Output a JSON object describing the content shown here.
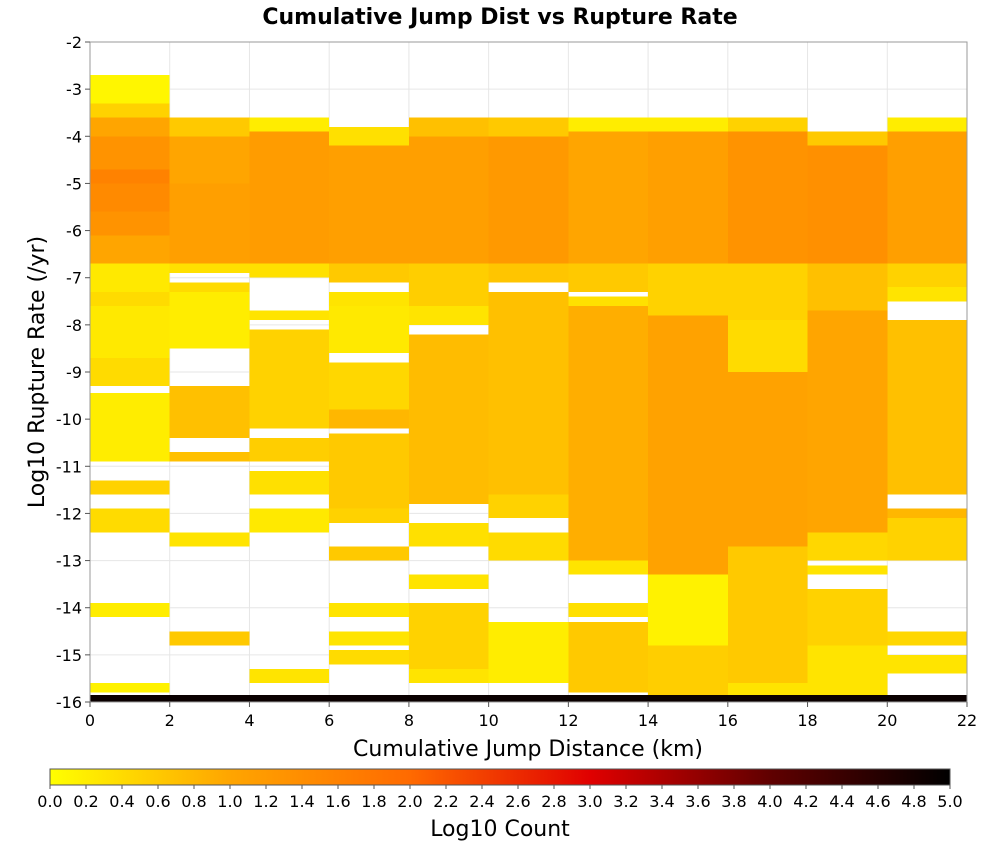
{
  "chart_data": {
    "type": "heatmap",
    "title": "Cumulative Jump Dist vs Rupture Rate",
    "xlabel": "Cumulative Jump Distance (km)",
    "ylabel": "Log10 Rupture Rate (/yr)",
    "xlim": [
      0,
      22
    ],
    "ylim": [
      -16,
      -2
    ],
    "x_bin_width": 2,
    "y_bin_width": 0.1,
    "x_ticks": [
      "0",
      "2",
      "4",
      "6",
      "8",
      "10",
      "12",
      "14",
      "16",
      "18",
      "20",
      "22"
    ],
    "y_ticks": [
      "-2",
      "-3",
      "-4",
      "-5",
      "-6",
      "-7",
      "-8",
      "-9",
      "-10",
      "-11",
      "-12",
      "-13",
      "-14",
      "-15",
      "-16"
    ],
    "grid": true,
    "colorbar": {
      "label": "Log10 Count",
      "min": 0.0,
      "max": 5.0,
      "ticks": [
        "0.0",
        "0.2",
        "0.4",
        "0.6",
        "0.8",
        "1.0",
        "1.2",
        "1.4",
        "1.6",
        "1.8",
        "2.0",
        "2.2",
        "2.4",
        "2.6",
        "2.8",
        "3.0",
        "3.2",
        "3.4",
        "3.6",
        "3.8",
        "4.0",
        "4.2",
        "4.4",
        "4.6",
        "4.8",
        "5.0"
      ],
      "colors": [
        "#ffff00",
        "#ffa500",
        "#ff6a00",
        "#e00000",
        "#600000",
        "#000000"
      ]
    },
    "columns": [
      {
        "x": [
          0,
          2
        ],
        "cells": [
          [
            -3.3,
            -2.7,
            0.1
          ],
          [
            -3.6,
            -3.3,
            0.5
          ],
          [
            -4.0,
            -3.6,
            1.0
          ],
          [
            -4.7,
            -4.0,
            1.3
          ],
          [
            -5.0,
            -4.7,
            1.6
          ],
          [
            -5.6,
            -5.0,
            1.45
          ],
          [
            -6.1,
            -5.6,
            1.3
          ],
          [
            -6.7,
            -6.1,
            1.0
          ],
          [
            -7.3,
            -6.7,
            0.25
          ],
          [
            -7.6,
            -7.3,
            0.4
          ],
          [
            -8.7,
            -7.6,
            0.25
          ],
          [
            -9.3,
            -8.7,
            0.4
          ],
          [
            -9.6,
            -9.45,
            0.2
          ],
          [
            -10.9,
            -9.6,
            0.2
          ],
          [
            -11.6,
            -11.3,
            0.5
          ],
          [
            -12.4,
            -11.9,
            0.4
          ],
          [
            -14.2,
            -13.9,
            0.2
          ],
          [
            -15.8,
            -15.6,
            0.15
          ],
          [
            -16.0,
            -15.85,
            4.9
          ]
        ]
      },
      {
        "x": [
          2,
          4
        ],
        "cells": [
          [
            -4.0,
            -3.6,
            0.6
          ],
          [
            -5.0,
            -4.0,
            1.0
          ],
          [
            -6.7,
            -5.0,
            1.1
          ],
          [
            -6.9,
            -6.7,
            0.35
          ],
          [
            -7.3,
            -7.1,
            0.4
          ],
          [
            -8.5,
            -7.3,
            0.2
          ],
          [
            -10.4,
            -9.3,
            0.7
          ],
          [
            -10.9,
            -10.7,
            0.7
          ],
          [
            -12.7,
            -12.4,
            0.3
          ],
          [
            -14.8,
            -14.5,
            0.6
          ],
          [
            -16.0,
            -15.85,
            4.9
          ]
        ]
      },
      {
        "x": [
          4,
          6
        ],
        "cells": [
          [
            -3.9,
            -3.6,
            0.2
          ],
          [
            -6.7,
            -3.9,
            1.15
          ],
          [
            -7.0,
            -6.7,
            0.35
          ],
          [
            -7.9,
            -7.7,
            0.3
          ],
          [
            -10.2,
            -8.1,
            0.5
          ],
          [
            -10.9,
            -10.4,
            0.55
          ],
          [
            -11.6,
            -11.1,
            0.35
          ],
          [
            -12.4,
            -11.9,
            0.25
          ],
          [
            -15.6,
            -15.3,
            0.3
          ],
          [
            -16.0,
            -15.85,
            4.9
          ]
        ]
      },
      {
        "x": [
          6,
          8
        ],
        "cells": [
          [
            -4.2,
            -3.8,
            0.35
          ],
          [
            -6.7,
            -4.2,
            1.1
          ],
          [
            -7.1,
            -6.7,
            0.6
          ],
          [
            -7.6,
            -7.3,
            0.3
          ],
          [
            -8.6,
            -7.6,
            0.25
          ],
          [
            -9.8,
            -8.8,
            0.45
          ],
          [
            -10.2,
            -9.8,
            0.8
          ],
          [
            -11.9,
            -10.3,
            0.6
          ],
          [
            -12.2,
            -11.9,
            0.5
          ],
          [
            -13.0,
            -12.7,
            0.6
          ],
          [
            -14.2,
            -13.9,
            0.3
          ],
          [
            -14.8,
            -14.5,
            0.3
          ],
          [
            -15.2,
            -14.9,
            0.4
          ],
          [
            -16.0,
            -15.85,
            4.9
          ]
        ]
      },
      {
        "x": [
          8,
          10
        ],
        "cells": [
          [
            -4.0,
            -3.6,
            0.7
          ],
          [
            -6.7,
            -4.0,
            1.1
          ],
          [
            -7.6,
            -6.7,
            0.55
          ],
          [
            -8.0,
            -7.6,
            0.3
          ],
          [
            -11.8,
            -8.2,
            0.75
          ],
          [
            -12.7,
            -12.2,
            0.35
          ],
          [
            -13.6,
            -13.3,
            0.3
          ],
          [
            -15.3,
            -13.9,
            0.5
          ],
          [
            -15.6,
            -15.3,
            0.3
          ],
          [
            -16.0,
            -15.85,
            4.9
          ]
        ]
      },
      {
        "x": [
          10,
          12
        ],
        "cells": [
          [
            -4.0,
            -3.6,
            0.6
          ],
          [
            -6.7,
            -4.0,
            1.2
          ],
          [
            -7.1,
            -6.7,
            0.65
          ],
          [
            -11.6,
            -7.3,
            0.7
          ],
          [
            -12.1,
            -11.6,
            0.5
          ],
          [
            -13.0,
            -12.4,
            0.4
          ],
          [
            -15.6,
            -14.3,
            0.2
          ],
          [
            -16.0,
            -15.85,
            4.9
          ]
        ]
      },
      {
        "x": [
          12,
          14
        ],
        "cells": [
          [
            -3.9,
            -3.6,
            0.2
          ],
          [
            -6.7,
            -3.9,
            1.0
          ],
          [
            -7.3,
            -6.7,
            0.6
          ],
          [
            -7.6,
            -7.4,
            0.35
          ],
          [
            -13.0,
            -7.6,
            0.9
          ],
          [
            -13.3,
            -13.0,
            0.3
          ],
          [
            -14.2,
            -13.9,
            0.35
          ],
          [
            -15.8,
            -14.3,
            0.6
          ],
          [
            -16.0,
            -15.85,
            4.9
          ]
        ]
      },
      {
        "x": [
          14,
          16
        ],
        "cells": [
          [
            -3.9,
            -3.6,
            0.2
          ],
          [
            -6.7,
            -3.9,
            1.1
          ],
          [
            -7.8,
            -6.7,
            0.5
          ],
          [
            -13.3,
            -7.8,
            1.05
          ],
          [
            -14.8,
            -13.3,
            0.15
          ],
          [
            -15.9,
            -14.8,
            0.55
          ],
          [
            -16.0,
            -15.85,
            4.9
          ]
        ]
      },
      {
        "x": [
          16,
          18
        ],
        "cells": [
          [
            -3.9,
            -3.6,
            0.5
          ],
          [
            -6.7,
            -3.9,
            1.3
          ],
          [
            -7.9,
            -6.7,
            0.5
          ],
          [
            -9.0,
            -7.9,
            0.4
          ],
          [
            -12.7,
            -9.0,
            1.05
          ],
          [
            -13.3,
            -12.7,
            0.6
          ],
          [
            -15.6,
            -13.3,
            0.6
          ],
          [
            -15.9,
            -15.6,
            0.3
          ],
          [
            -16.0,
            -15.85,
            4.9
          ]
        ]
      },
      {
        "x": [
          18,
          20
        ],
        "cells": [
          [
            -4.2,
            -3.9,
            0.6
          ],
          [
            -6.7,
            -4.2,
            1.35
          ],
          [
            -7.7,
            -6.7,
            0.7
          ],
          [
            -12.4,
            -7.7,
            1.0
          ],
          [
            -13.0,
            -12.4,
            0.45
          ],
          [
            -13.3,
            -13.1,
            0.3
          ],
          [
            -14.8,
            -13.6,
            0.5
          ],
          [
            -15.9,
            -14.8,
            0.3
          ],
          [
            -16.0,
            -15.85,
            4.9
          ]
        ]
      },
      {
        "x": [
          20,
          22
        ],
        "cells": [
          [
            -3.9,
            -3.6,
            0.2
          ],
          [
            -6.7,
            -3.9,
            1.1
          ],
          [
            -7.2,
            -6.7,
            0.5
          ],
          [
            -7.5,
            -7.2,
            0.3
          ],
          [
            -11.6,
            -7.9,
            0.7
          ],
          [
            -12.1,
            -11.9,
            0.8
          ],
          [
            -13.0,
            -12.1,
            0.5
          ],
          [
            -14.8,
            -14.5,
            0.45
          ],
          [
            -15.4,
            -15.0,
            0.3
          ],
          [
            -16.0,
            -15.85,
            4.9
          ]
        ]
      }
    ]
  }
}
